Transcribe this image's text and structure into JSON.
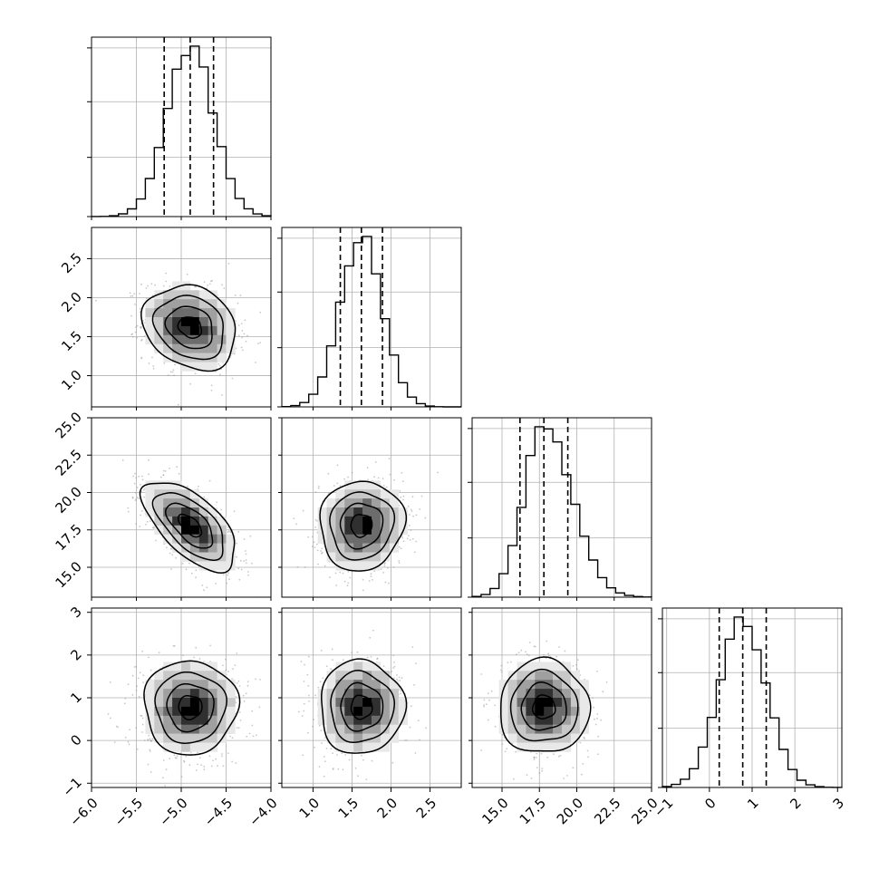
{
  "chart_data": {
    "type": "corner",
    "params": [
      {
        "range": [
          -6.0,
          -4.0
        ],
        "ticks": [
          -6.0,
          -5.5,
          -5.0,
          -4.5,
          -4.0
        ],
        "tick_labels": [
          "−6.0",
          "−5.5",
          "−5.0",
          "−4.5",
          "−4.0"
        ],
        "median": -4.9,
        "sd": 0.26,
        "quantiles": [
          -5.19,
          -4.9,
          -4.64
        ]
      },
      {
        "range": [
          0.6,
          2.9
        ],
        "ticks": [
          1.0,
          1.5,
          2.0,
          2.5
        ],
        "tick_labels": [
          "1.0",
          "1.5",
          "2.0",
          "2.5"
        ],
        "median": 1.62,
        "sd": 0.27,
        "quantiles": [
          1.35,
          1.62,
          1.89
        ]
      },
      {
        "range": [
          13.0,
          25.0
        ],
        "ticks": [
          15.0,
          17.5,
          20.0,
          22.5,
          25.0
        ],
        "tick_labels": [
          "15.0",
          "17.5",
          "20.0",
          "22.5",
          "25.0"
        ],
        "median": 17.8,
        "sd": 1.5,
        "quantiles": [
          16.2,
          17.8,
          19.4
        ]
      },
      {
        "range": [
          -1.1,
          3.1
        ],
        "ticks": [
          -1,
          0,
          1,
          2,
          3
        ],
        "tick_labels": [
          "−1",
          "0",
          "1",
          "2",
          "3"
        ],
        "median": 0.78,
        "sd": 0.55,
        "quantiles": [
          0.23,
          0.78,
          1.33
        ]
      }
    ],
    "correlations": [
      {
        "pair": [
          0,
          1
        ],
        "rho": -0.2
      },
      {
        "pair": [
          0,
          2
        ],
        "rho": -0.62
      },
      {
        "pair": [
          0,
          3
        ],
        "rho": 0.0
      },
      {
        "pair": [
          1,
          2
        ],
        "rho": 0.05
      },
      {
        "pair": [
          1,
          3
        ],
        "rho": 0.0
      },
      {
        "pair": [
          2,
          3
        ],
        "rho": 0.0
      }
    ],
    "histogram_bins": 20,
    "contour_levels_sigma": [
      0.5,
      1.0,
      1.5,
      2.0
    ],
    "grid": true,
    "colors": {
      "line": "#000000",
      "points": "#9a9a9a",
      "grid": "#b0b0b0"
    }
  }
}
